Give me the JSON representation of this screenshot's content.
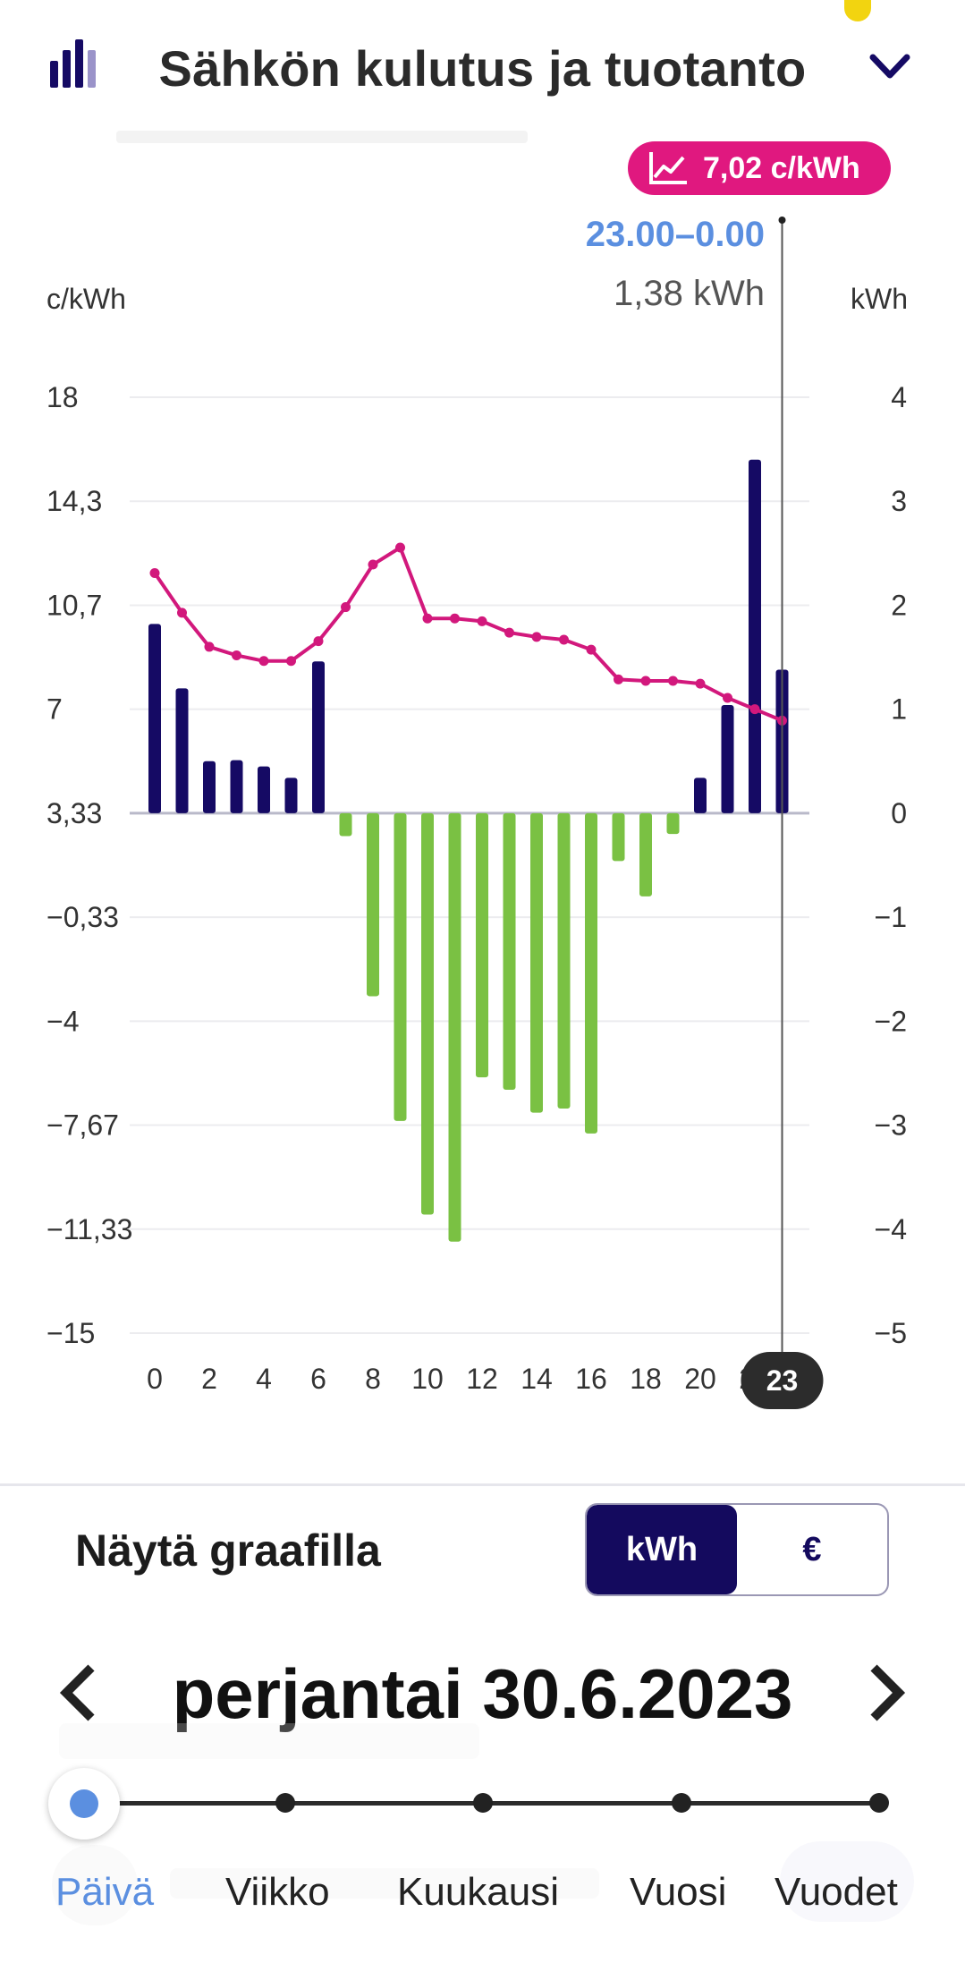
{
  "header": {
    "title": "Sähkön kulutus ja tuotanto",
    "logo_icon": "bar-chart-logo-icon",
    "expand_icon": "chevron-down-icon"
  },
  "chart_badge": {
    "price": "7,02 c/kWh",
    "icon": "line-chart-icon"
  },
  "selection": {
    "time_range": "23.00–0.00",
    "value": "1,38 kWh",
    "hour_label": "23"
  },
  "colors": {
    "consumption": "#150a64",
    "production": "#7ac143",
    "price_line": "#d2187c",
    "accent": "#5b8fe0",
    "badge": "#e0187f"
  },
  "chart_data": {
    "type": "bar",
    "left_axis_label": "c/kWh",
    "right_axis_label": "kWh",
    "left_ticks": [
      "18",
      "14,3",
      "10,7",
      "7",
      "3,33",
      "−0,33",
      "−4",
      "−7,67",
      "−11,33",
      "−15"
    ],
    "right_ticks": [
      "4",
      "3",
      "2",
      "1",
      "0",
      "−1",
      "−2",
      "−3",
      "−4",
      "−5"
    ],
    "x_ticks": [
      "0",
      "2",
      "4",
      "6",
      "8",
      "10",
      "12",
      "14",
      "16",
      "18",
      "20",
      "22"
    ],
    "hours": [
      0,
      1,
      2,
      3,
      4,
      5,
      6,
      7,
      8,
      9,
      10,
      11,
      12,
      13,
      14,
      15,
      16,
      17,
      18,
      19,
      20,
      21,
      22,
      23
    ],
    "energy_kwh": [
      1.82,
      1.2,
      0.5,
      0.51,
      0.45,
      0.34,
      1.46,
      -0.22,
      -1.76,
      -2.96,
      -3.86,
      -4.12,
      -2.54,
      -2.66,
      -2.88,
      -2.84,
      -3.08,
      -0.46,
      -0.8,
      -0.2,
      0.34,
      1.04,
      3.4,
      1.38
    ],
    "price_c_kwh": [
      11.8,
      10.4,
      9.2,
      8.9,
      8.7,
      8.7,
      9.4,
      10.6,
      12.1,
      12.7,
      10.2,
      10.2,
      10.1,
      9.7,
      9.55,
      9.45,
      9.1,
      8.05,
      8.0,
      8.0,
      7.9,
      7.4,
      7.0,
      6.6
    ],
    "y_left_range": [
      -15,
      18
    ],
    "y_right_range": [
      -5,
      4
    ],
    "selected_hour": 23
  },
  "controls": {
    "show_label": "Näytä graafilla",
    "unit_kwh": "kWh",
    "unit_eur": "€"
  },
  "date_nav": {
    "date": "perjantai 30.6.2023",
    "prev_icon": "chevron-left-icon",
    "next_icon": "chevron-right-icon"
  },
  "periods": [
    "Päivä",
    "Viikko",
    "Kuukausi",
    "Vuosi",
    "Vuodet"
  ],
  "active_period": "Päivä"
}
